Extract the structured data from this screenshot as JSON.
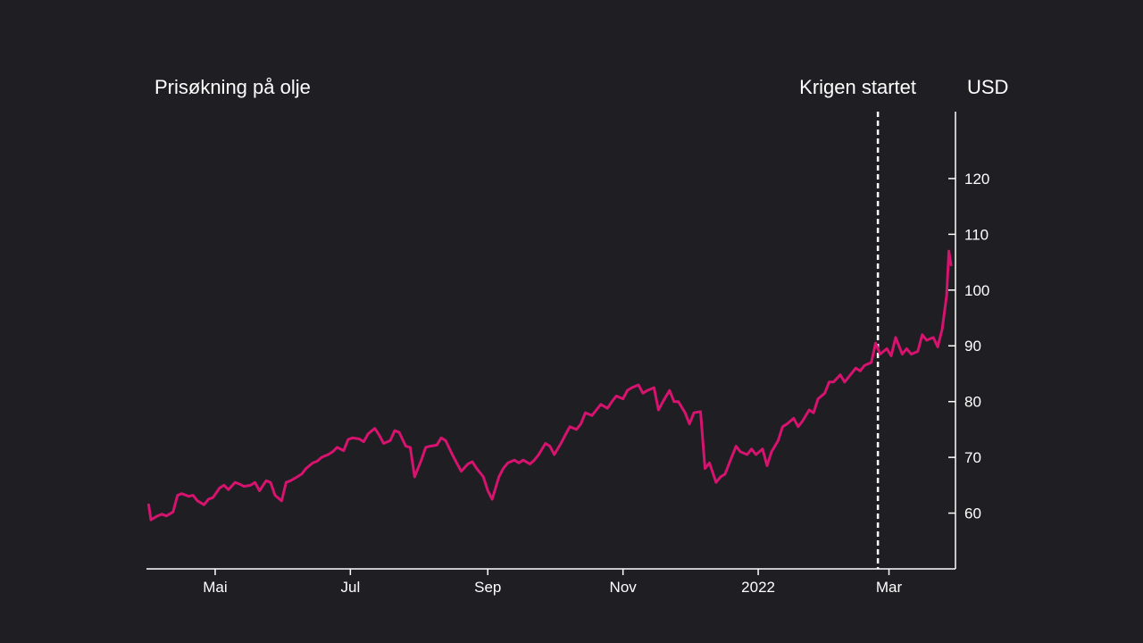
{
  "chart_data": {
    "type": "line",
    "title": "Prisøkning på olje",
    "unit_label": "USD",
    "annotation": {
      "label": "Krigen startet",
      "date": "2022-02-24"
    },
    "x_range": [
      "2021-03-31",
      "2022-03-31"
    ],
    "x_ticks": [
      {
        "date": "2021-05-01",
        "label": "Mai"
      },
      {
        "date": "2021-07-01",
        "label": "Jul"
      },
      {
        "date": "2021-09-01",
        "label": "Sep"
      },
      {
        "date": "2021-11-01",
        "label": "Nov"
      },
      {
        "date": "2022-01-01",
        "label": "2022"
      },
      {
        "date": "2022-03-01",
        "label": "Mar"
      }
    ],
    "y_ticks": [
      60,
      70,
      80,
      90,
      100,
      110,
      120
    ],
    "ylim": [
      50,
      132
    ],
    "grid": false,
    "line_color": "#d6136f",
    "axis_color": "#ffffff",
    "background_color": "#1f1e22",
    "series": [
      {
        "points": [
          [
            "2021-04-01",
            61.5
          ],
          [
            "2021-04-02",
            58.8
          ],
          [
            "2021-04-05",
            59.5
          ],
          [
            "2021-04-07",
            59.8
          ],
          [
            "2021-04-09",
            59.5
          ],
          [
            "2021-04-12",
            60.2
          ],
          [
            "2021-04-14",
            63.2
          ],
          [
            "2021-04-16",
            63.5
          ],
          [
            "2021-04-19",
            63.0
          ],
          [
            "2021-04-21",
            63.2
          ],
          [
            "2021-04-23",
            62.2
          ],
          [
            "2021-04-26",
            61.5
          ],
          [
            "2021-04-28",
            62.5
          ],
          [
            "2021-04-30",
            62.8
          ],
          [
            "2021-05-03",
            64.5
          ],
          [
            "2021-05-05",
            65.0
          ],
          [
            "2021-05-07",
            64.2
          ],
          [
            "2021-05-10",
            65.5
          ],
          [
            "2021-05-12",
            65.2
          ],
          [
            "2021-05-14",
            64.8
          ],
          [
            "2021-05-17",
            65.0
          ],
          [
            "2021-05-19",
            65.5
          ],
          [
            "2021-05-21",
            64.0
          ],
          [
            "2021-05-24",
            65.8
          ],
          [
            "2021-05-26",
            65.5
          ],
          [
            "2021-05-28",
            63.2
          ],
          [
            "2021-05-31",
            62.2
          ],
          [
            "2021-06-02",
            65.5
          ],
          [
            "2021-06-04",
            65.8
          ],
          [
            "2021-06-07",
            66.5
          ],
          [
            "2021-06-09",
            67.0
          ],
          [
            "2021-06-11",
            68.0
          ],
          [
            "2021-06-14",
            69.0
          ],
          [
            "2021-06-16",
            69.3
          ],
          [
            "2021-06-18",
            70.0
          ],
          [
            "2021-06-21",
            70.5
          ],
          [
            "2021-06-23",
            71.0
          ],
          [
            "2021-06-25",
            71.8
          ],
          [
            "2021-06-28",
            71.2
          ],
          [
            "2021-06-30",
            73.2
          ],
          [
            "2021-07-02",
            73.5
          ],
          [
            "2021-07-05",
            73.3
          ],
          [
            "2021-07-07",
            72.8
          ],
          [
            "2021-07-09",
            74.2
          ],
          [
            "2021-07-12",
            75.2
          ],
          [
            "2021-07-14",
            74.0
          ],
          [
            "2021-07-16",
            72.5
          ],
          [
            "2021-07-19",
            73.0
          ],
          [
            "2021-07-21",
            74.8
          ],
          [
            "2021-07-23",
            74.5
          ],
          [
            "2021-07-26",
            72.0
          ],
          [
            "2021-07-28",
            71.8
          ],
          [
            "2021-07-30",
            66.5
          ],
          [
            "2021-08-02",
            69.5
          ],
          [
            "2021-08-04",
            71.8
          ],
          [
            "2021-08-06",
            72.0
          ],
          [
            "2021-08-09",
            72.2
          ],
          [
            "2021-08-11",
            73.5
          ],
          [
            "2021-08-13",
            73.0
          ],
          [
            "2021-08-16",
            70.5
          ],
          [
            "2021-08-18",
            69.0
          ],
          [
            "2021-08-20",
            67.5
          ],
          [
            "2021-08-23",
            68.8
          ],
          [
            "2021-08-25",
            69.2
          ],
          [
            "2021-08-27",
            68.0
          ],
          [
            "2021-08-30",
            66.5
          ],
          [
            "2021-09-01",
            64.0
          ],
          [
            "2021-09-03",
            62.5
          ],
          [
            "2021-09-06",
            66.5
          ],
          [
            "2021-09-08",
            68.0
          ],
          [
            "2021-09-10",
            69.0
          ],
          [
            "2021-09-13",
            69.5
          ],
          [
            "2021-09-15",
            69.0
          ],
          [
            "2021-09-17",
            69.5
          ],
          [
            "2021-09-20",
            68.8
          ],
          [
            "2021-09-22",
            69.5
          ],
          [
            "2021-09-24",
            70.5
          ],
          [
            "2021-09-27",
            72.5
          ],
          [
            "2021-09-29",
            72.0
          ],
          [
            "2021-10-01",
            70.5
          ],
          [
            "2021-10-04",
            72.5
          ],
          [
            "2021-10-06",
            74.0
          ],
          [
            "2021-10-08",
            75.5
          ],
          [
            "2021-10-11",
            75.0
          ],
          [
            "2021-10-13",
            76.0
          ],
          [
            "2021-10-15",
            78.0
          ],
          [
            "2021-10-18",
            77.5
          ],
          [
            "2021-10-20",
            78.5
          ],
          [
            "2021-10-22",
            79.5
          ],
          [
            "2021-10-25",
            78.8
          ],
          [
            "2021-10-27",
            80.0
          ],
          [
            "2021-10-29",
            81.0
          ],
          [
            "2021-11-01",
            80.5
          ],
          [
            "2021-11-03",
            82.0
          ],
          [
            "2021-11-05",
            82.5
          ],
          [
            "2021-11-08",
            83.0
          ],
          [
            "2021-11-10",
            81.5
          ],
          [
            "2021-11-12",
            82.0
          ],
          [
            "2021-11-15",
            82.5
          ],
          [
            "2021-11-17",
            78.5
          ],
          [
            "2021-11-19",
            80.0
          ],
          [
            "2021-11-22",
            82.0
          ],
          [
            "2021-11-24",
            80.0
          ],
          [
            "2021-11-26",
            80.0
          ],
          [
            "2021-11-29",
            78.0
          ],
          [
            "2021-12-01",
            76.0
          ],
          [
            "2021-12-03",
            78.0
          ],
          [
            "2021-12-06",
            78.2
          ],
          [
            "2021-12-08",
            68.0
          ],
          [
            "2021-12-10",
            69.0
          ],
          [
            "2021-12-13",
            65.5
          ],
          [
            "2021-12-15",
            66.5
          ],
          [
            "2021-12-17",
            67.0
          ],
          [
            "2021-12-20",
            70.0
          ],
          [
            "2021-12-22",
            72.0
          ],
          [
            "2021-12-24",
            71.0
          ],
          [
            "2021-12-27",
            70.5
          ],
          [
            "2021-12-29",
            71.5
          ],
          [
            "2021-12-31",
            70.5
          ],
          [
            "2022-01-03",
            71.5
          ],
          [
            "2022-01-05",
            68.5
          ],
          [
            "2022-01-07",
            71.0
          ],
          [
            "2022-01-10",
            73.0
          ],
          [
            "2022-01-12",
            75.5
          ],
          [
            "2022-01-14",
            76.0
          ],
          [
            "2022-01-17",
            77.0
          ],
          [
            "2022-01-19",
            75.5
          ],
          [
            "2022-01-21",
            76.5
          ],
          [
            "2022-01-24",
            78.5
          ],
          [
            "2022-01-26",
            78.0
          ],
          [
            "2022-01-28",
            80.5
          ],
          [
            "2022-01-31",
            81.5
          ],
          [
            "2022-02-02",
            83.5
          ],
          [
            "2022-02-04",
            83.5
          ],
          [
            "2022-02-07",
            84.8
          ],
          [
            "2022-02-09",
            83.5
          ],
          [
            "2022-02-11",
            84.5
          ],
          [
            "2022-02-14",
            86.0
          ],
          [
            "2022-02-16",
            85.5
          ],
          [
            "2022-02-18",
            86.5
          ],
          [
            "2022-02-21",
            87.0
          ],
          [
            "2022-02-23",
            90.5
          ],
          [
            "2022-02-25",
            88.5
          ],
          [
            "2022-02-28",
            89.5
          ],
          [
            "2022-03-02",
            88.2
          ],
          [
            "2022-03-04",
            91.5
          ],
          [
            "2022-03-07",
            88.5
          ],
          [
            "2022-03-09",
            89.5
          ],
          [
            "2022-03-11",
            88.5
          ],
          [
            "2022-03-14",
            89.0
          ],
          [
            "2022-03-16",
            92.0
          ],
          [
            "2022-03-18",
            91.0
          ],
          [
            "2022-03-21",
            91.5
          ],
          [
            "2022-03-23",
            89.8
          ],
          [
            "2022-03-25",
            93.0
          ],
          [
            "2022-03-27",
            99.0
          ],
          [
            "2022-03-28",
            107.0
          ],
          [
            "2022-03-29",
            104.5
          ]
        ]
      }
    ]
  }
}
